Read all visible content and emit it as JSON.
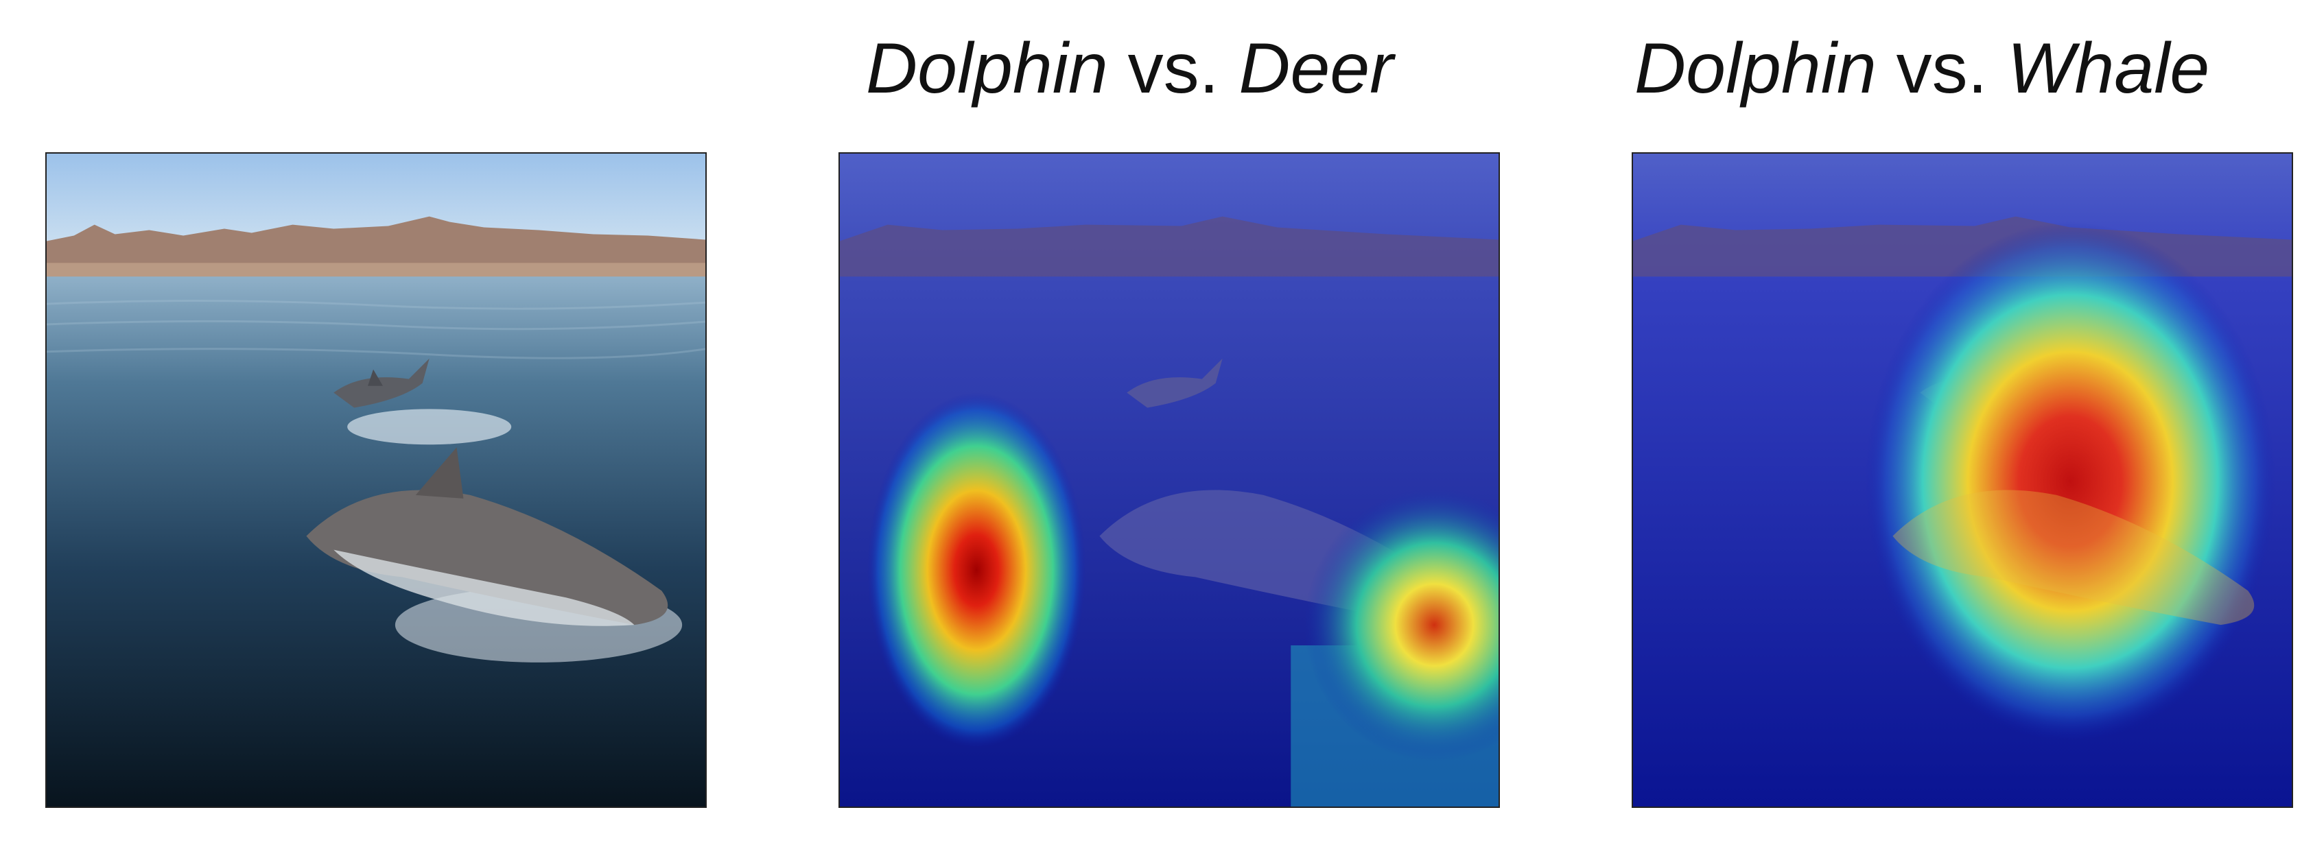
{
  "titles": [
    {
      "a": "Dolphin",
      "vs": " vs. ",
      "b": "Deer"
    },
    {
      "a": "Dolphin",
      "vs": " vs. ",
      "b": "Whale"
    }
  ],
  "panels": [
    {
      "kind": "original-photo",
      "subject": "two dolphins leaping from calm sea with mountains behind"
    },
    {
      "kind": "heatmap-overlay",
      "label": "Dolphin vs. Deer"
    },
    {
      "kind": "heatmap-overlay",
      "label": "Dolphin vs. Whale"
    }
  ],
  "colors": {
    "sky": "#a8c8e8",
    "sea": "#1e3a57",
    "mountain": "#9a7a6a",
    "heat_low": "#1020a0",
    "heat_mid": "#20d0f0",
    "heat_high": "#d01010"
  }
}
